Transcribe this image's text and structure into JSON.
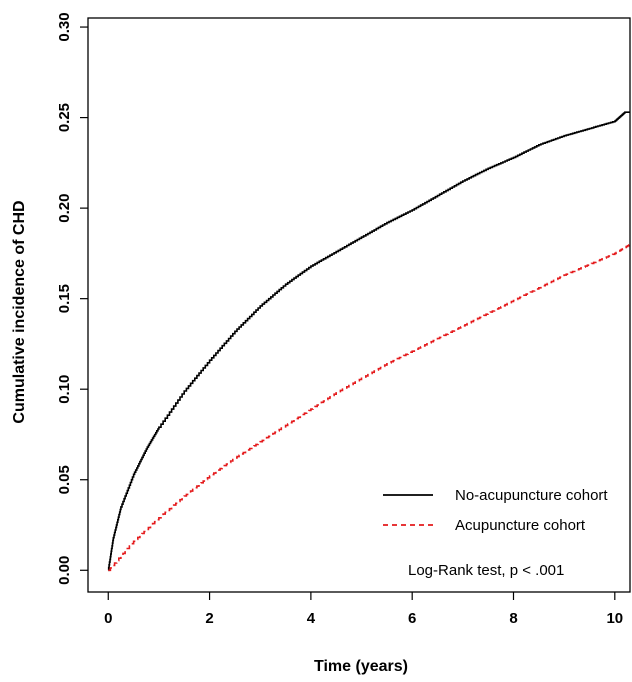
{
  "chart_data": {
    "type": "line",
    "title": "",
    "xlabel": "Time (years)",
    "ylabel": "Cumulative incidence of CHD",
    "xlim": [
      -0.4,
      10.3
    ],
    "ylim": [
      -0.012,
      0.305
    ],
    "xticks": [
      0,
      2,
      4,
      6,
      8,
      10
    ],
    "yticks": [
      0.0,
      0.05,
      0.1,
      0.15,
      0.2,
      0.25,
      0.3
    ],
    "xtick_labels": [
      "0",
      "2",
      "4",
      "6",
      "8",
      "10"
    ],
    "ytick_labels": [
      "0.00",
      "0.05",
      "0.10",
      "0.15",
      "0.20",
      "0.25",
      "0.30"
    ],
    "grid": false,
    "legend_position": "bottom-right",
    "annotation": "Log-Rank test, p < .001",
    "series": [
      {
        "name": "No-acupuncture cohort",
        "color": "#000000",
        "line_style": "solid",
        "step": true,
        "x": [
          0,
          0.1,
          0.25,
          0.5,
          0.75,
          1,
          1.5,
          2,
          2.5,
          3,
          3.5,
          4,
          4.5,
          5,
          5.5,
          6,
          6.5,
          7,
          7.5,
          8,
          8.5,
          9,
          9.5,
          10,
          10.2,
          10.3
        ],
        "y": [
          0,
          0.018,
          0.035,
          0.053,
          0.067,
          0.079,
          0.099,
          0.116,
          0.132,
          0.146,
          0.158,
          0.168,
          0.176,
          0.184,
          0.192,
          0.199,
          0.207,
          0.215,
          0.222,
          0.228,
          0.235,
          0.24,
          0.244,
          0.248,
          0.253,
          0.253
        ]
      },
      {
        "name": "Acupuncture cohort",
        "color": "#e41a1c",
        "line_style": "dashed",
        "step": true,
        "x": [
          0,
          0.5,
          1,
          1.5,
          2,
          2.5,
          3,
          3.5,
          4,
          4.5,
          5,
          5.5,
          6,
          6.5,
          7,
          7.5,
          8,
          8.5,
          9,
          9.5,
          10,
          10.3
        ],
        "y": [
          0,
          0.016,
          0.029,
          0.041,
          0.052,
          0.062,
          0.071,
          0.08,
          0.089,
          0.098,
          0.106,
          0.114,
          0.121,
          0.128,
          0.135,
          0.142,
          0.149,
          0.156,
          0.163,
          0.169,
          0.175,
          0.18
        ]
      }
    ]
  }
}
